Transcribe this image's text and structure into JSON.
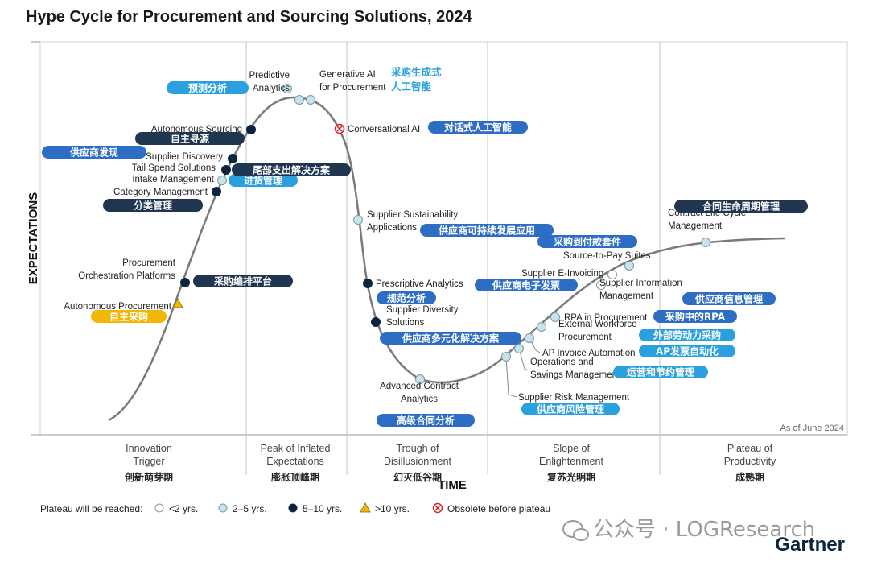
{
  "title": "Hype Cycle for Procurement and Sourcing Solutions, 2024",
  "as_of": "As of June 2024",
  "watermark": "公众号 · LOGResearch",
  "brand": "Gartner",
  "chart_data": {
    "type": "hype-cycle",
    "title": "Hype Cycle for Procurement and Sourcing Solutions, 2024",
    "ylabel": "EXPECTATIONS",
    "xlabel": "TIME",
    "phases": [
      {
        "name": "Innovation\nTrigger",
        "cn": "创新萌芽期"
      },
      {
        "name": "Peak of Inflated\nExpectations",
        "cn": "膨胀顶峰期"
      },
      {
        "name": "Trough of\nDisillusionment",
        "cn": "幻灭低谷期"
      },
      {
        "name": "Slope of\nEnlightenment",
        "cn": "复苏光明期"
      },
      {
        "name": "Plateau of\nProductivity",
        "cn": "成熟期"
      }
    ],
    "legend": [
      {
        "key": "lt2",
        "label": "<2 yrs."
      },
      {
        "key": "2to5",
        "label": "2–5 yrs."
      },
      {
        "key": "5to10",
        "label": "5–10 yrs."
      },
      {
        "key": "gt10",
        "label": ">10 yrs."
      },
      {
        "key": "obsolete",
        "label": "Obsolete before plateau"
      }
    ],
    "legend_title": "Plateau will be reached:",
    "colors": {
      "lt2": "#ffffff",
      "2to5": "#c9e3ea",
      "5to10": "#0d2440",
      "gt10": "#f2b705",
      "obsolete": "#d62728",
      "curve": "#7a7a7a",
      "pill_dark": "#1f3550",
      "pill_blue": "#2e6dc4",
      "pill_light": "#2aa1de",
      "pill_yellow": "#f2b705"
    },
    "items": [
      {
        "name": "Autonomous Procurement",
        "cn": "自主采购",
        "plateau": "gt10"
      },
      {
        "name": "Procurement\nOrchestration Platforms",
        "cn": "采购编排平台",
        "plateau": "5to10"
      },
      {
        "name": "Category Management",
        "cn": "分类管理",
        "plateau": "5to10"
      },
      {
        "name": "Intake Management",
        "cn": "进货管理",
        "plateau": "2to5"
      },
      {
        "name": "Tail Spend Solutions",
        "cn": "尾部支出解决方案",
        "plateau": "5to10"
      },
      {
        "name": "Supplier Discovery",
        "cn": "供应商发现",
        "plateau": "5to10"
      },
      {
        "name": "Autonomous Sourcing",
        "cn": "自主寻源",
        "plateau": "5to10"
      },
      {
        "name": "Predictive\nAnalytics",
        "cn": "预测分析",
        "plateau": "2to5"
      },
      {
        "name": "Generative AI\nfor Procurement",
        "cn": "采购生成式\n人工智能",
        "plateau": "2to5"
      },
      {
        "name": "Conversational AI",
        "cn": "对话式人工智能",
        "plateau": "obsolete"
      },
      {
        "name": "Supplier Sustainability\nApplications",
        "cn": "供应商可持续发展应用",
        "plateau": "2to5"
      },
      {
        "name": "Prescriptive Analytics",
        "cn": "规范分析",
        "plateau": "5to10"
      },
      {
        "name": "Supplier Diversity\nSolutions",
        "cn": "供应商多元化解决方案",
        "plateau": "5to10"
      },
      {
        "name": "Advanced Contract\nAnalytics",
        "cn": "高级合同分析",
        "plateau": "2to5"
      },
      {
        "name": "Supplier Risk Management",
        "cn": "供应商风险管理",
        "plateau": "2to5"
      },
      {
        "name": "Operations and\nSavings Management",
        "cn": "运营和节约管理",
        "plateau": "2to5"
      },
      {
        "name": "AP Invoice Automation",
        "cn": "AP发票自动化",
        "plateau": "2to5"
      },
      {
        "name": "External Workforce\nProcurement",
        "cn": "外部劳动力采购",
        "plateau": "2to5"
      },
      {
        "name": "RPA in Procurement",
        "cn": "采购中的RPA",
        "plateau": "2to5"
      },
      {
        "name": "Supplier Information\nManagement",
        "cn": "供应商信息管理",
        "plateau": "lt2"
      },
      {
        "name": "Supplier E-Invoicing",
        "cn": "供应商电子发票",
        "plateau": "lt2"
      },
      {
        "name": "Source-to-Pay Suites",
        "cn": "采购到付款套件",
        "plateau": "2to5"
      },
      {
        "name": "Contract Life Cycle\nManagement",
        "cn": "合同生命周期管理",
        "plateau": "2to5"
      }
    ]
  }
}
